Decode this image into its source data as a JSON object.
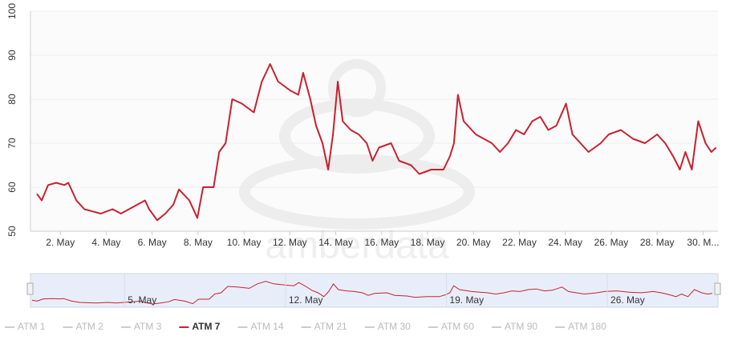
{
  "chart_data": {
    "type": "line",
    "watermark": "amberdata",
    "x": [
      0.98,
      1.19,
      1.47,
      1.82,
      2.18,
      2.35,
      2.7,
      3.05,
      3.41,
      3.76,
      4.28,
      4.64,
      4.99,
      5.34,
      5.69,
      5.87,
      6.22,
      6.57,
      6.92,
      7.17,
      7.62,
      7.97,
      8.22,
      8.68,
      8.92,
      9.2,
      9.49,
      9.91,
      10.43,
      10.78,
      11.14,
      11.49,
      12.01,
      12.37,
      12.58,
      12.89,
      13.14,
      13.42,
      13.67,
      13.88,
      14.09,
      14.3,
      14.65,
      15.0,
      15.35,
      15.6,
      15.88,
      16.41,
      16.76,
      17.28,
      17.64,
      18.16,
      18.69,
      18.97,
      19.15,
      19.32,
      19.57,
      20.1,
      20.45,
      20.8,
      21.15,
      21.5,
      21.85,
      22.2,
      22.56,
      22.91,
      23.26,
      23.61,
      24.03,
      24.31,
      24.66,
      25.01,
      25.54,
      25.89,
      26.42,
      26.95,
      27.47,
      28.0,
      28.35,
      28.7,
      28.99,
      29.23,
      29.51,
      29.79,
      30.11,
      30.36,
      30.57
    ],
    "series": [
      {
        "name": "ATM 1",
        "visible": false
      },
      {
        "name": "ATM 2",
        "visible": false
      },
      {
        "name": "ATM 3",
        "visible": false
      },
      {
        "name": "ATM 7",
        "visible": true,
        "color": "#c8202f",
        "values": [
          58.5,
          57,
          60.5,
          61,
          60.5,
          61,
          57,
          55,
          54.5,
          54,
          55,
          54,
          55,
          56,
          57,
          55,
          52.5,
          54,
          56,
          59.5,
          57,
          53,
          60,
          60,
          68,
          70,
          80,
          79,
          77,
          84,
          88,
          84,
          82,
          81,
          86,
          80,
          74,
          70,
          64,
          72,
          84,
          75,
          73,
          72,
          70,
          66,
          69,
          70,
          66,
          65,
          63,
          64,
          64,
          67,
          70,
          81,
          75,
          72,
          71,
          70,
          68,
          70,
          73,
          72,
          75,
          76,
          73,
          74,
          79,
          72,
          70,
          68,
          70,
          72,
          73,
          71,
          70,
          72,
          70,
          67,
          64,
          68,
          64,
          75,
          70,
          68,
          69
        ]
      },
      {
        "name": "ATM 14",
        "visible": false
      },
      {
        "name": "ATM 21",
        "visible": false
      },
      {
        "name": "ATM 30",
        "visible": false
      },
      {
        "name": "ATM 60",
        "visible": false
      },
      {
        "name": "ATM 90",
        "visible": false
      },
      {
        "name": "ATM 180",
        "visible": false
      }
    ],
    "xlim": [
      0.7,
      30.65
    ],
    "xticks": [
      {
        "value": 2,
        "label": "2. May"
      },
      {
        "value": 4,
        "label": "4. May"
      },
      {
        "value": 6,
        "label": "6. May"
      },
      {
        "value": 8,
        "label": "8. May"
      },
      {
        "value": 10,
        "label": "10. May"
      },
      {
        "value": 12,
        "label": "12. May"
      },
      {
        "value": 14,
        "label": "14. May"
      },
      {
        "value": 16,
        "label": "16. May"
      },
      {
        "value": 18,
        "label": "18. May"
      },
      {
        "value": 20,
        "label": "20. May"
      },
      {
        "value": 22,
        "label": "22. May"
      },
      {
        "value": 24,
        "label": "24. May"
      },
      {
        "value": 26,
        "label": "26. May"
      },
      {
        "value": 28,
        "label": "28. May"
      },
      {
        "value": 30,
        "label": "30. M..."
      }
    ],
    "ylim": [
      50,
      100
    ],
    "yticks": [
      50,
      60,
      70,
      80,
      90,
      100
    ],
    "grid": true,
    "navigator_xticks": [
      {
        "value": 5,
        "label": "5. May"
      },
      {
        "value": 12,
        "label": "12. May"
      },
      {
        "value": 19,
        "label": "19. May"
      },
      {
        "value": 26,
        "label": "26. May"
      }
    ]
  }
}
